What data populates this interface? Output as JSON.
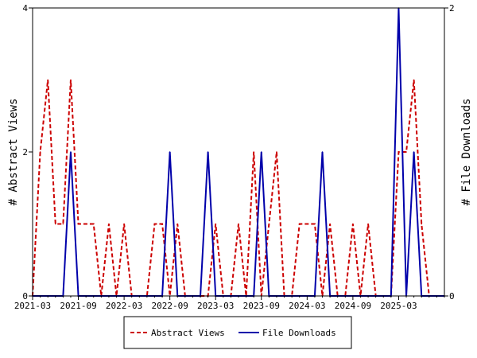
{
  "chart_data": {
    "type": "line",
    "x": [
      "2021-03",
      "2021-04",
      "2021-05",
      "2021-06",
      "2021-07",
      "2021-08",
      "2021-09",
      "2021-10",
      "2021-11",
      "2021-12",
      "2022-01",
      "2022-02",
      "2022-03",
      "2022-04",
      "2022-05",
      "2022-06",
      "2022-07",
      "2022-08",
      "2022-09",
      "2022-10",
      "2022-11",
      "2022-12",
      "2023-01",
      "2023-02",
      "2023-03",
      "2023-04",
      "2023-05",
      "2023-06",
      "2023-07",
      "2023-08",
      "2023-09",
      "2023-10",
      "2023-11",
      "2023-12",
      "2024-01",
      "2024-02",
      "2024-03",
      "2024-04",
      "2024-05",
      "2024-06",
      "2024-07",
      "2024-08",
      "2024-09",
      "2024-10",
      "2024-11",
      "2024-12",
      "2025-01",
      "2025-02",
      "2025-03",
      "2025-04",
      "2025-05",
      "2025-06",
      "2025-07",
      "2025-08",
      "2025-09"
    ],
    "x_tick_labels": [
      "2021-03",
      "2021-09",
      "2022-03",
      "2022-09",
      "2023-03",
      "2023-09",
      "2024-03",
      "2024-09",
      "2025-03"
    ],
    "series": [
      {
        "name": "Abstract Views",
        "axis": "left",
        "color": "#cc0000",
        "style": "dashed",
        "values": [
          0,
          2,
          3,
          1,
          1,
          3,
          1,
          1,
          1,
          0,
          1,
          0,
          1,
          0,
          0,
          0,
          1,
          1,
          0,
          1,
          0,
          0,
          0,
          0,
          1,
          0,
          0,
          1,
          0,
          2,
          0,
          1,
          2,
          0,
          0,
          1,
          1,
          1,
          0,
          1,
          0,
          0,
          1,
          0,
          1,
          0,
          0,
          0,
          2,
          2,
          3,
          1,
          0,
          0,
          0
        ]
      },
      {
        "name": "File Downloads",
        "axis": "right",
        "color": "#0000aa",
        "style": "solid",
        "values": [
          0,
          0,
          0,
          0,
          0,
          1,
          0,
          0,
          0,
          0,
          0,
          0,
          0,
          0,
          0,
          0,
          0,
          0,
          1,
          0,
          0,
          0,
          0,
          1,
          0,
          0,
          0,
          0,
          0,
          0,
          1,
          0,
          0,
          0,
          0,
          0,
          0,
          0,
          1,
          0,
          0,
          0,
          0,
          0,
          0,
          0,
          0,
          0,
          2,
          0,
          1,
          0,
          0,
          0,
          0
        ]
      }
    ],
    "ylabel_left": "# Abstract Views",
    "ylabel_right": "# File Downloads",
    "ylim_left": [
      0,
      4
    ],
    "ylim_right": [
      0,
      2
    ],
    "yticks_left": [
      0,
      2,
      4
    ],
    "yticks_right": [
      0,
      2
    ],
    "legend_position": "bottom-center"
  }
}
